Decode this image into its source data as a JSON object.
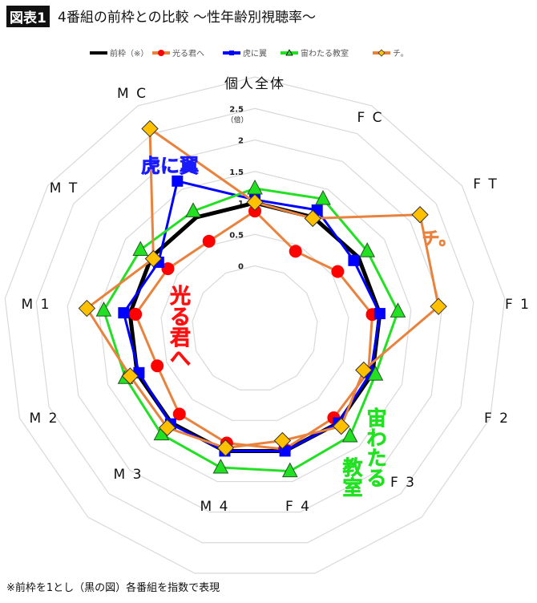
{
  "header": {
    "figure_label": "図表1",
    "title": "4番組の前枠との比較 ～性年齢別視聴率～"
  },
  "footnote": "※前枠を1とし（黒の図）各番組を指数で表現",
  "chart_data": {
    "type": "radar",
    "title": "4番組の前枠との比較 ～性年齢別視聴率～",
    "categories": [
      "個人全体",
      "F C",
      "F T",
      "F 1",
      "F 2",
      "F 3",
      "F 4",
      "M 4",
      "M 3",
      "M 2",
      "M 1",
      "M T",
      "M C"
    ],
    "range": [
      -1,
      3
    ],
    "ticks": [
      "0",
      "0.5",
      "1",
      "1.5",
      "2",
      "2.5"
    ],
    "tick_values": [
      0,
      0.5,
      1,
      1.5,
      2,
      2.5
    ],
    "unit_label": "（倍）",
    "grid": true,
    "legend_position": "top",
    "series": [
      {
        "name": "前枠（※）",
        "color": "#000000",
        "marker": "none",
        "values": [
          1,
          1,
          1,
          1,
          1,
          1,
          1,
          1,
          1,
          1,
          1,
          1,
          1
        ]
      },
      {
        "name": "光る君へ",
        "color": "#e8823c",
        "marker_color": "#ff0000",
        "marker": "circle",
        "annotation": "光る君へ",
        "values": [
          0.87,
          0.39,
          0.6,
          0.88,
          0.93,
          0.89,
          0.97,
          0.87,
          0.81,
          0.66,
          0.91,
          0.68,
          0.57
        ]
      },
      {
        "name": "虎に翼",
        "color": "#0000ff",
        "marker_color": "#0000ff",
        "marker": "square",
        "annotation": "虎に翼",
        "values": [
          1.05,
          1.13,
          0.91,
          1.0,
          0.97,
          1.0,
          1.0,
          1.0,
          1.02,
          0.97,
          1.1,
          0.86,
          1.65
        ]
      },
      {
        "name": "宙わたる教室",
        "color": "#22e022",
        "marker_color": "#22e022",
        "marker": "triangle",
        "annotation": "宙わたる教室",
        "values": [
          1.23,
          1.33,
          1.17,
          1.29,
          1.05,
          1.28,
          1.33,
          1.27,
          1.24,
          1.2,
          1.42,
          1.21,
          1.11
        ]
      },
      {
        "name": "チ。",
        "color": "#e8823c",
        "marker_color": "#ffc000",
        "marker": "diamond",
        "annotation": "チ。",
        "values": [
          1.01,
          0.98,
          2.19,
          1.94,
          0.85,
          1.07,
          0.83,
          0.95,
          1.1,
          1.12,
          1.69,
          0.96,
          2.59
        ]
      }
    ]
  }
}
